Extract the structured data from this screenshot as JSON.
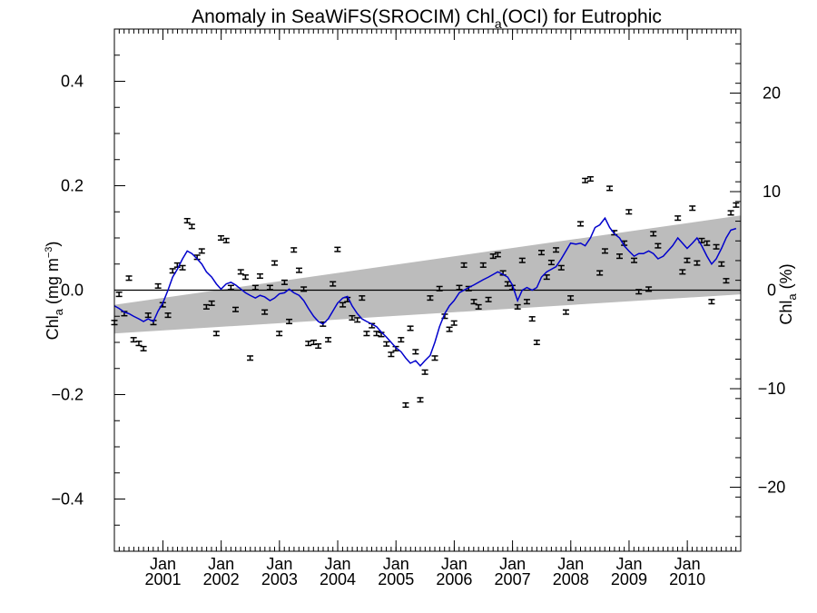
{
  "chart_data": {
    "type": "scatter",
    "title_main": "Anomaly in SeaWiFS(SROCIM) Chl",
    "title_sub": "a",
    "title_tail": "(OCI) for Eutrophic",
    "ylabel_left_pre": "Chl",
    "ylabel_left_sub": "a",
    "ylabel_left_unit": " (mg m",
    "ylabel_left_sup": "−3",
    "ylabel_left_close": ")",
    "ylabel_right_pre": "Chl",
    "ylabel_right_sub": "a",
    "ylabel_right_unit": " (%)",
    "xlim": [
      2000.0,
      2010.75
    ],
    "ylim_left": [
      -0.5,
      0.5
    ],
    "ylim_right": [
      -26.5,
      26.5
    ],
    "y_ticks_left": [
      {
        "value": -0.4,
        "label": "−0.4"
      },
      {
        "value": -0.2,
        "label": "−0.2"
      },
      {
        "value": 0.0,
        "label": "0.0"
      },
      {
        "value": 0.2,
        "label": "0.2"
      },
      {
        "value": 0.4,
        "label": "0.4"
      }
    ],
    "y_ticks_right": [
      {
        "value": -20,
        "label": "−20"
      },
      {
        "value": -10,
        "label": "−10"
      },
      {
        "value": 0,
        "label": "0"
      },
      {
        "value": 10,
        "label": "10"
      },
      {
        "value": 20,
        "label": "20"
      }
    ],
    "x_ticks": [
      {
        "value": 2000.833,
        "month": "Jan",
        "year": "2001"
      },
      {
        "value": 2001.833,
        "month": "Jan",
        "year": "2002"
      },
      {
        "value": 2002.833,
        "month": "Jan",
        "year": "2003"
      },
      {
        "value": 2003.833,
        "month": "Jan",
        "year": "2004"
      },
      {
        "value": 2004.833,
        "month": "Jan",
        "year": "2005"
      },
      {
        "value": 2005.833,
        "month": "Jan",
        "year": "2006"
      },
      {
        "value": 2006.833,
        "month": "Jan",
        "year": "2007"
      },
      {
        "value": 2007.833,
        "month": "Jan",
        "year": "2008"
      },
      {
        "value": 2008.833,
        "month": "Jan",
        "year": "2009"
      },
      {
        "value": 2009.833,
        "month": "Jan",
        "year": "2010"
      }
    ],
    "trend_band": {
      "start": [
        -0.083,
        -0.028
      ],
      "end": [
        -0.008,
        0.143
      ]
    },
    "zero_line": 0,
    "error_bar_halfwidth": 0.004,
    "points": [
      [
        2000.0,
        -0.062
      ],
      [
        2000.08,
        -0.008
      ],
      [
        2000.17,
        -0.045
      ],
      [
        2000.25,
        0.023
      ],
      [
        2000.33,
        -0.095
      ],
      [
        2000.42,
        -0.102
      ],
      [
        2000.5,
        -0.112
      ],
      [
        2000.58,
        -0.048
      ],
      [
        2000.67,
        -0.062
      ],
      [
        2000.75,
        0.008
      ],
      [
        2000.83,
        -0.028
      ],
      [
        2000.92,
        -0.048
      ],
      [
        2001.0,
        0.037
      ],
      [
        2001.08,
        0.048
      ],
      [
        2001.17,
        0.043
      ],
      [
        2001.25,
        0.133
      ],
      [
        2001.33,
        0.122
      ],
      [
        2001.42,
        0.063
      ],
      [
        2001.5,
        0.075
      ],
      [
        2001.58,
        -0.032
      ],
      [
        2001.67,
        -0.025
      ],
      [
        2001.75,
        -0.083
      ],
      [
        2001.83,
        0.1
      ],
      [
        2001.92,
        0.095
      ],
      [
        2002.0,
        0.005
      ],
      [
        2002.08,
        -0.037
      ],
      [
        2002.17,
        0.035
      ],
      [
        2002.25,
        0.025
      ],
      [
        2002.33,
        -0.13
      ],
      [
        2002.42,
        0.005
      ],
      [
        2002.5,
        0.027
      ],
      [
        2002.58,
        -0.042
      ],
      [
        2002.67,
        0.005
      ],
      [
        2002.75,
        0.052
      ],
      [
        2002.83,
        -0.083
      ],
      [
        2002.92,
        0.015
      ],
      [
        2003.0,
        -0.06
      ],
      [
        2003.08,
        0.077
      ],
      [
        2003.17,
        0.038
      ],
      [
        2003.25,
        0.002
      ],
      [
        2003.33,
        -0.102
      ],
      [
        2003.42,
        -0.1
      ],
      [
        2003.5,
        -0.107
      ],
      [
        2003.58,
        -0.065
      ],
      [
        2003.67,
        -0.095
      ],
      [
        2003.75,
        0.012
      ],
      [
        2003.83,
        0.078
      ],
      [
        2003.92,
        -0.028
      ],
      [
        2004.0,
        -0.018
      ],
      [
        2004.08,
        -0.053
      ],
      [
        2004.17,
        -0.057
      ],
      [
        2004.25,
        -0.015
      ],
      [
        2004.33,
        -0.083
      ],
      [
        2004.42,
        -0.068
      ],
      [
        2004.5,
        -0.083
      ],
      [
        2004.58,
        -0.085
      ],
      [
        2004.67,
        -0.103
      ],
      [
        2004.75,
        -0.123
      ],
      [
        2004.83,
        -0.112
      ],
      [
        2004.92,
        -0.095
      ],
      [
        2005.0,
        -0.22
      ],
      [
        2005.08,
        -0.073
      ],
      [
        2005.17,
        -0.118
      ],
      [
        2005.25,
        -0.21
      ],
      [
        2005.33,
        -0.157
      ],
      [
        2005.42,
        -0.015
      ],
      [
        2005.5,
        -0.13
      ],
      [
        2005.58,
        0.003
      ],
      [
        2005.67,
        -0.05
      ],
      [
        2005.75,
        -0.075
      ],
      [
        2005.83,
        -0.063
      ],
      [
        2005.92,
        0.005
      ],
      [
        2006.0,
        0.048
      ],
      [
        2006.08,
        0.003
      ],
      [
        2006.17,
        -0.022
      ],
      [
        2006.25,
        -0.032
      ],
      [
        2006.33,
        0.048
      ],
      [
        2006.42,
        -0.018
      ],
      [
        2006.5,
        0.065
      ],
      [
        2006.58,
        0.068
      ],
      [
        2006.67,
        0.033
      ],
      [
        2006.75,
        0.012
      ],
      [
        2006.83,
        0.005
      ],
      [
        2006.92,
        -0.032
      ],
      [
        2007.0,
        0.057
      ],
      [
        2007.08,
        -0.022
      ],
      [
        2007.17,
        -0.055
      ],
      [
        2007.25,
        -0.1
      ],
      [
        2007.33,
        0.072
      ],
      [
        2007.42,
        0.025
      ],
      [
        2007.5,
        0.053
      ],
      [
        2007.58,
        0.077
      ],
      [
        2007.67,
        0.043
      ],
      [
        2007.75,
        -0.042
      ],
      [
        2007.83,
        -0.015
      ],
      [
        2008.0,
        0.127
      ],
      [
        2008.08,
        0.21
      ],
      [
        2008.17,
        0.213
      ],
      [
        2008.33,
        0.033
      ],
      [
        2008.42,
        0.075
      ],
      [
        2008.5,
        0.195
      ],
      [
        2008.58,
        0.11
      ],
      [
        2008.67,
        0.065
      ],
      [
        2008.75,
        0.09
      ],
      [
        2008.83,
        0.15
      ],
      [
        2008.92,
        0.057
      ],
      [
        2009.0,
        -0.003
      ],
      [
        2009.17,
        0.002
      ],
      [
        2009.25,
        0.108
      ],
      [
        2009.33,
        0.085
      ],
      [
        2009.67,
        0.138
      ],
      [
        2009.75,
        0.035
      ],
      [
        2009.83,
        0.057
      ],
      [
        2009.92,
        0.157
      ],
      [
        2010.0,
        0.052
      ],
      [
        2010.08,
        0.095
      ],
      [
        2010.17,
        0.09
      ],
      [
        2010.25,
        -0.022
      ],
      [
        2010.33,
        0.083
      ],
      [
        2010.42,
        0.05
      ],
      [
        2010.5,
        0.018
      ],
      [
        2010.58,
        0.148
      ],
      [
        2010.67,
        0.163
      ]
    ],
    "running_mean": [
      [
        2000.0,
        -0.03
      ],
      [
        2000.08,
        -0.035
      ],
      [
        2000.17,
        -0.042
      ],
      [
        2000.25,
        -0.045
      ],
      [
        2000.33,
        -0.05
      ],
      [
        2000.42,
        -0.055
      ],
      [
        2000.5,
        -0.06
      ],
      [
        2000.58,
        -0.055
      ],
      [
        2000.67,
        -0.06
      ],
      [
        2000.75,
        -0.04
      ],
      [
        2000.83,
        -0.025
      ],
      [
        2000.92,
        0.0
      ],
      [
        2001.0,
        0.025
      ],
      [
        2001.08,
        0.04
      ],
      [
        2001.17,
        0.06
      ],
      [
        2001.25,
        0.075
      ],
      [
        2001.33,
        0.07
      ],
      [
        2001.42,
        0.06
      ],
      [
        2001.5,
        0.05
      ],
      [
        2001.58,
        0.035
      ],
      [
        2001.67,
        0.025
      ],
      [
        2001.75,
        0.012
      ],
      [
        2001.83,
        0.002
      ],
      [
        2001.92,
        0.012
      ],
      [
        2002.0,
        0.015
      ],
      [
        2002.08,
        0.01
      ],
      [
        2002.17,
        0.002
      ],
      [
        2002.25,
        -0.005
      ],
      [
        2002.33,
        -0.01
      ],
      [
        2002.42,
        -0.015
      ],
      [
        2002.5,
        -0.01
      ],
      [
        2002.58,
        -0.013
      ],
      [
        2002.67,
        -0.02
      ],
      [
        2002.75,
        -0.015
      ],
      [
        2002.83,
        -0.007
      ],
      [
        2002.92,
        -0.005
      ],
      [
        2003.0,
        0.002
      ],
      [
        2003.08,
        -0.005
      ],
      [
        2003.17,
        -0.01
      ],
      [
        2003.25,
        -0.02
      ],
      [
        2003.33,
        -0.035
      ],
      [
        2003.42,
        -0.05
      ],
      [
        2003.5,
        -0.06
      ],
      [
        2003.58,
        -0.065
      ],
      [
        2003.67,
        -0.055
      ],
      [
        2003.75,
        -0.04
      ],
      [
        2003.83,
        -0.025
      ],
      [
        2003.92,
        -0.015
      ],
      [
        2004.0,
        -0.012
      ],
      [
        2004.08,
        -0.03
      ],
      [
        2004.17,
        -0.045
      ],
      [
        2004.25,
        -0.055
      ],
      [
        2004.33,
        -0.06
      ],
      [
        2004.42,
        -0.065
      ],
      [
        2004.5,
        -0.07
      ],
      [
        2004.58,
        -0.08
      ],
      [
        2004.67,
        -0.09
      ],
      [
        2004.75,
        -0.1
      ],
      [
        2004.83,
        -0.11
      ],
      [
        2004.92,
        -0.118
      ],
      [
        2005.0,
        -0.13
      ],
      [
        2005.08,
        -0.14
      ],
      [
        2005.17,
        -0.135
      ],
      [
        2005.25,
        -0.145
      ],
      [
        2005.33,
        -0.135
      ],
      [
        2005.42,
        -0.125
      ],
      [
        2005.5,
        -0.1
      ],
      [
        2005.58,
        -0.07
      ],
      [
        2005.67,
        -0.045
      ],
      [
        2005.75,
        -0.03
      ],
      [
        2005.83,
        -0.02
      ],
      [
        2005.92,
        -0.005
      ],
      [
        2006.0,
        0.0
      ],
      [
        2006.08,
        0.005
      ],
      [
        2006.17,
        0.01
      ],
      [
        2006.25,
        0.015
      ],
      [
        2006.33,
        0.02
      ],
      [
        2006.42,
        0.025
      ],
      [
        2006.5,
        0.03
      ],
      [
        2006.58,
        0.035
      ],
      [
        2006.67,
        0.03
      ],
      [
        2006.75,
        0.025
      ],
      [
        2006.83,
        0.01
      ],
      [
        2006.92,
        -0.02
      ],
      [
        2007.0,
        0.0
      ],
      [
        2007.08,
        0.005
      ],
      [
        2007.17,
        0.0
      ],
      [
        2007.25,
        0.005
      ],
      [
        2007.33,
        0.025
      ],
      [
        2007.42,
        0.035
      ],
      [
        2007.5,
        0.04
      ],
      [
        2007.58,
        0.045
      ],
      [
        2007.67,
        0.06
      ],
      [
        2007.75,
        0.075
      ],
      [
        2007.83,
        0.09
      ],
      [
        2007.92,
        0.088
      ],
      [
        2008.0,
        0.09
      ],
      [
        2008.08,
        0.085
      ],
      [
        2008.17,
        0.1
      ],
      [
        2008.25,
        0.12
      ],
      [
        2008.33,
        0.125
      ],
      [
        2008.42,
        0.138
      ],
      [
        2008.5,
        0.12
      ],
      [
        2008.58,
        0.108
      ],
      [
        2008.67,
        0.1
      ],
      [
        2008.75,
        0.085
      ],
      [
        2008.83,
        0.075
      ],
      [
        2008.92,
        0.065
      ],
      [
        2009.0,
        0.07
      ],
      [
        2009.08,
        0.07
      ],
      [
        2009.17,
        0.075
      ],
      [
        2009.25,
        0.07
      ],
      [
        2009.33,
        0.06
      ],
      [
        2009.42,
        0.065
      ],
      [
        2009.5,
        0.075
      ],
      [
        2009.58,
        0.085
      ],
      [
        2009.67,
        0.1
      ],
      [
        2009.75,
        0.09
      ],
      [
        2009.83,
        0.08
      ],
      [
        2009.92,
        0.09
      ],
      [
        2010.0,
        0.1
      ],
      [
        2010.08,
        0.085
      ],
      [
        2010.17,
        0.065
      ],
      [
        2010.25,
        0.05
      ],
      [
        2010.33,
        0.06
      ],
      [
        2010.42,
        0.08
      ],
      [
        2010.5,
        0.1
      ],
      [
        2010.58,
        0.115
      ],
      [
        2010.67,
        0.118
      ]
    ],
    "colors": {
      "band": "#bcbcbc",
      "mean_line": "#0000cc",
      "points": "#000000",
      "zero_line": "#000000",
      "frame": "#000000"
    },
    "grid": false,
    "legend": "none"
  }
}
